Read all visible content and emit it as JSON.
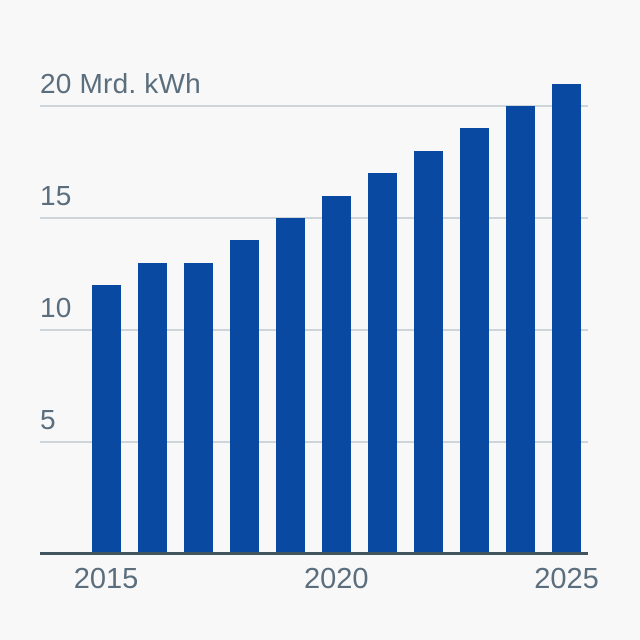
{
  "chart_data": {
    "type": "bar",
    "title": "",
    "categories": [
      "2015",
      "2016",
      "2017",
      "2018",
      "2019",
      "2020",
      "2021",
      "2022",
      "2023",
      "2024",
      "2025"
    ],
    "values": [
      12,
      13,
      13,
      14,
      15,
      16,
      17,
      18,
      19,
      20,
      21
    ],
    "xlabel": "",
    "ylabel": "Mrd. kWh",
    "ylim": [
      0,
      21.5
    ],
    "grid": true,
    "legend_position": "none",
    "yticks": [
      {
        "value": 5,
        "label": "5"
      },
      {
        "value": 10,
        "label": "10"
      },
      {
        "value": 15,
        "label": "15"
      },
      {
        "value": 20,
        "label": "20 Mrd. kWh"
      }
    ],
    "xticks": [
      {
        "label": "2015",
        "bar_index": 0
      },
      {
        "label": "2020",
        "bar_index": 5
      },
      {
        "label": "2025",
        "bar_index": 10
      }
    ],
    "colors": {
      "bar": "#0a49a2",
      "grid_line": "#cdd5db",
      "axis_line": "#42545e",
      "label_text": "#5a6e7e",
      "background": "#f8f8f8"
    }
  }
}
